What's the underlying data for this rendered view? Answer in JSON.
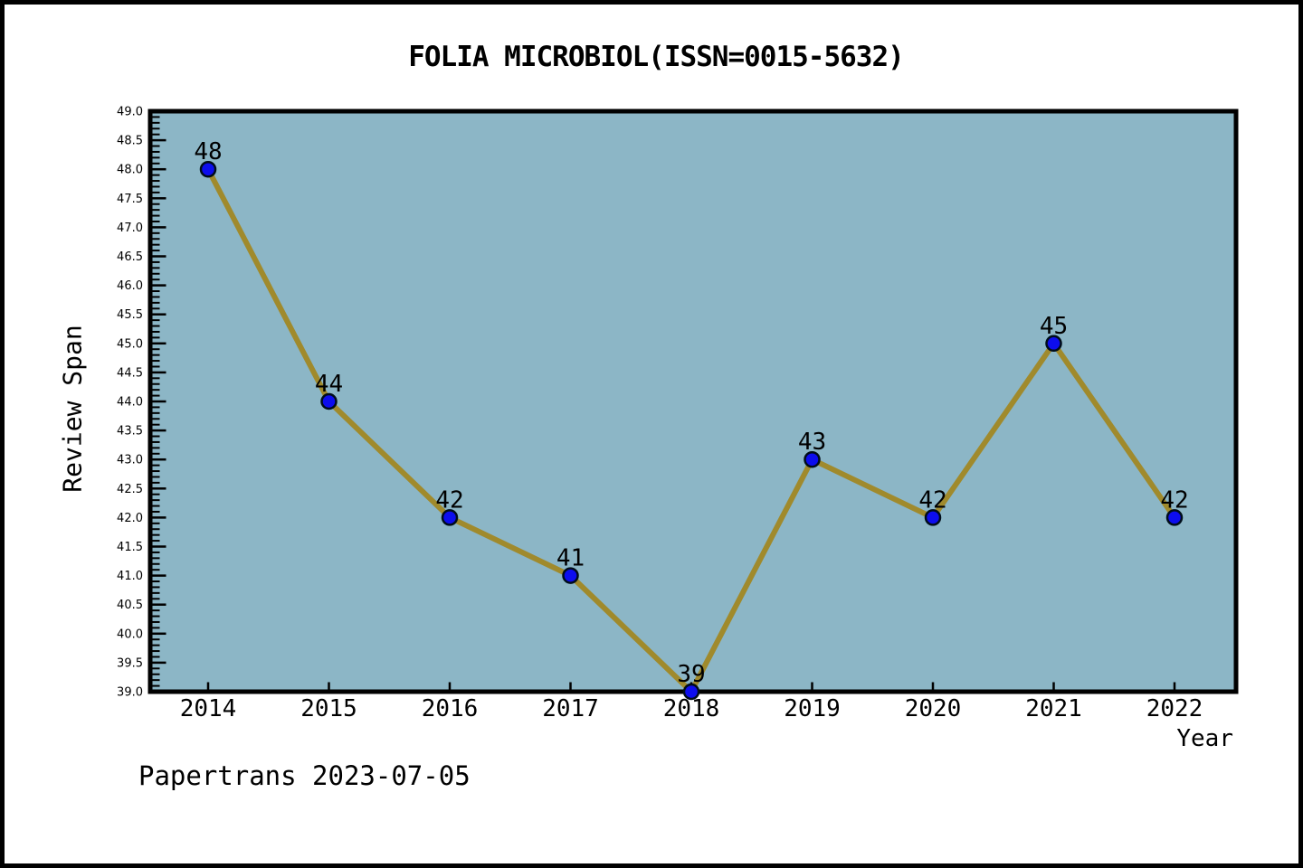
{
  "title": "FOLIA MICROBIOL(ISSN=0015-5632)",
  "footer": "Papertrans 2023-07-05",
  "chart_data": {
    "type": "line",
    "title": "FOLIA MICROBIOL(ISSN=0015-5632)",
    "x": [
      2014,
      2015,
      2016,
      2017,
      2018,
      2019,
      2020,
      2021,
      2022
    ],
    "values": [
      48,
      44,
      42,
      41,
      39,
      43,
      42,
      45,
      42
    ],
    "point_labels": [
      "48",
      "44",
      "42",
      "41",
      "39",
      "43",
      "42",
      "45",
      "42"
    ],
    "xlabel": "Year",
    "ylabel": "Review Span",
    "ylim": [
      39.0,
      49.0
    ],
    "ytick_major_step": 0.5,
    "ytick_minor_step": 0.1,
    "grid": false,
    "legend": "none",
    "series_name": "Review Span",
    "annotation": "Papertrans 2023-07-05",
    "colors": {
      "page_bg": "#ffffff",
      "plot_bg": "#8cb6c6",
      "frame": "#000000",
      "line": "#a08a2c",
      "marker_fill": "#0d0dee",
      "marker_edge": "#000d1a",
      "text": "#000000"
    }
  }
}
